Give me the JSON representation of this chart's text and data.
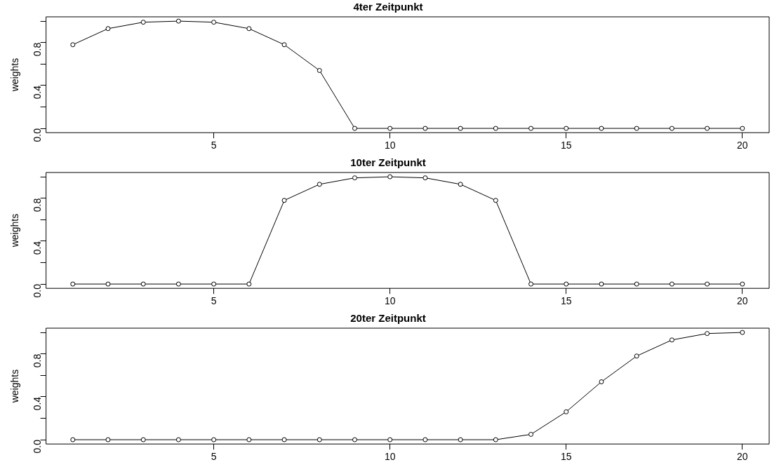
{
  "chart_data": [
    {
      "type": "line",
      "title": "4ter Zeitpunkt",
      "ylabel": "weights",
      "x": [
        1,
        2,
        3,
        4,
        5,
        6,
        7,
        8,
        9,
        10,
        11,
        12,
        13,
        14,
        15,
        16,
        17,
        18,
        19,
        20
      ],
      "marker": "circle",
      "line_style": "solid",
      "series": [
        {
          "color": "#000000",
          "values": [
            0.78,
            0.93,
            0.99,
            1.0,
            0.99,
            0.93,
            0.78,
            0.54,
            0,
            0,
            0,
            0,
            0,
            0,
            0,
            0,
            0,
            0,
            0,
            0
          ]
        }
      ],
      "xlim": [
        0.24,
        20.76
      ],
      "xticks": [
        5,
        10,
        15,
        20
      ],
      "ylim": [
        -0.04,
        1.04
      ],
      "yticks": [
        {
          "value": 0,
          "label": "0.0"
        },
        {
          "value": 0.2,
          "label": null
        },
        {
          "value": 0.4,
          "label": "0.4"
        },
        {
          "value": 0.6,
          "label": null
        },
        {
          "value": 0.8,
          "label": "0.8"
        },
        {
          "value": 1.0,
          "label": null
        }
      ]
    },
    {
      "type": "line",
      "title": "10ter Zeitpunkt",
      "ylabel": "weights",
      "x": [
        1,
        2,
        3,
        4,
        5,
        6,
        7,
        8,
        9,
        10,
        11,
        12,
        13,
        14,
        15,
        16,
        17,
        18,
        19,
        20
      ],
      "marker": "circle",
      "line_style": "solid",
      "series": [
        {
          "color": "#000000",
          "values": [
            0,
            0,
            0,
            0,
            0,
            0,
            0.78,
            0.93,
            0.99,
            1.0,
            0.99,
            0.93,
            0.78,
            0,
            0,
            0,
            0,
            0,
            0,
            0
          ]
        }
      ],
      "xlim": [
        0.24,
        20.76
      ],
      "xticks": [
        5,
        10,
        15,
        20
      ],
      "ylim": [
        -0.04,
        1.04
      ],
      "yticks": [
        {
          "value": 0,
          "label": "0.0"
        },
        {
          "value": 0.2,
          "label": null
        },
        {
          "value": 0.4,
          "label": "0.4"
        },
        {
          "value": 0.6,
          "label": null
        },
        {
          "value": 0.8,
          "label": "0.8"
        },
        {
          "value": 1.0,
          "label": null
        }
      ]
    },
    {
      "type": "line",
      "title": "20ter Zeitpunkt",
      "ylabel": "weights",
      "x": [
        1,
        2,
        3,
        4,
        5,
        6,
        7,
        8,
        9,
        10,
        11,
        12,
        13,
        14,
        15,
        16,
        17,
        18,
        19,
        20
      ],
      "marker": "circle",
      "line_style": "solid",
      "series": [
        {
          "color": "#000000",
          "values": [
            0,
            0,
            0,
            0,
            0,
            0,
            0,
            0,
            0,
            0,
            0,
            0,
            0,
            0.05,
            0.26,
            0.54,
            0.78,
            0.93,
            0.99,
            1.0
          ]
        }
      ],
      "xlim": [
        0.24,
        20.76
      ],
      "xticks": [
        5,
        10,
        15,
        20
      ],
      "ylim": [
        -0.04,
        1.04
      ],
      "yticks": [
        {
          "value": 0,
          "label": "0.0"
        },
        {
          "value": 0.2,
          "label": null
        },
        {
          "value": 0.4,
          "label": "0.4"
        },
        {
          "value": 0.6,
          "label": null
        },
        {
          "value": 0.8,
          "label": "0.8"
        },
        {
          "value": 1.0,
          "label": null
        }
      ]
    }
  ]
}
